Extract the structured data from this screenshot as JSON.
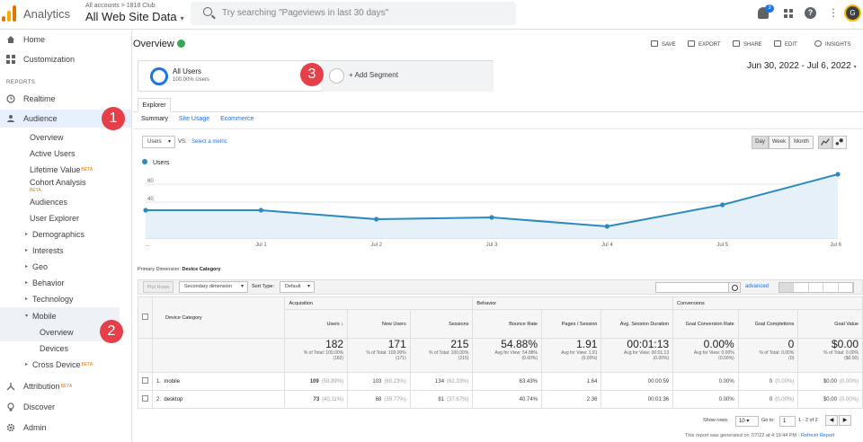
{
  "app": {
    "name": "Analytics",
    "breadcrumb": "All accounts > 1818 Club",
    "property": "All Web Site Data",
    "property_caret": "▾",
    "search_placeholder": "Try searching \"Pageviews in last 30 days\"",
    "notif_count": "3",
    "avatar_initial": "G"
  },
  "colors": {
    "accent": "#1a73e8",
    "series": "#2c8ac0",
    "badge": "#e5404a"
  },
  "sidebar": {
    "items": [
      {
        "label": "Home"
      },
      {
        "label": "Customization"
      },
      {
        "section": "REPORTS"
      },
      {
        "label": "Realtime"
      },
      {
        "label": "Audience"
      },
      {
        "label": "Overview"
      },
      {
        "label": "Active Users"
      },
      {
        "label": "Lifetime Value",
        "badge": "BETA"
      },
      {
        "label": "Cohort Analysis",
        "badge": "BETA"
      },
      {
        "label": "Audiences"
      },
      {
        "label": "User Explorer"
      },
      {
        "label": "Demographics"
      },
      {
        "label": "Interests"
      },
      {
        "label": "Geo"
      },
      {
        "label": "Behavior"
      },
      {
        "label": "Technology"
      },
      {
        "label": "Mobile"
      },
      {
        "label": "Overview"
      },
      {
        "label": "Devices"
      },
      {
        "label": "Cross Device",
        "badge": "BETA"
      },
      {
        "label": "Attribution",
        "badge": "BETA"
      },
      {
        "label": "Discover"
      },
      {
        "label": "Admin"
      }
    ],
    "badges": [
      "1",
      "2"
    ]
  },
  "report": {
    "title": "Overview",
    "toolbar": {
      "save": "SAVE",
      "export": "EXPORT",
      "share": "SHARE",
      "edit": "EDIT",
      "insights": "INSIGHTS"
    },
    "segment": {
      "name": "All Users",
      "pct": "100.00% Users",
      "add": "+ Add Segment",
      "badge": "3"
    },
    "date_range": "Jun 30, 2022 - Jul 6, 2022",
    "date_caret": "▾",
    "tab": "Explorer",
    "subtabs": [
      "Summary",
      "Site Usage",
      "Ecommerce"
    ],
    "metric": "Users",
    "vs": "VS:",
    "select_metric": "Select a metric",
    "periods": [
      "Day",
      "Week",
      "Month"
    ],
    "primary_dimension_label": "Primary Dimension:",
    "primary_dimension": "Device Category",
    "plot_rows": "Plot Rows",
    "secondary_dimension": "Secondary dimension",
    "sort_type_label": "Sort Type:",
    "sort_type": "Default",
    "advanced": "advanced"
  },
  "chart_data": {
    "type": "line",
    "series": [
      {
        "name": "Users",
        "values": [
          31,
          31,
          21,
          23,
          13,
          37,
          71
        ]
      }
    ],
    "categories": [
      "Jun 30",
      "Jul 1",
      "Jul 2",
      "Jul 3",
      "Jul 4",
      "Jul 5",
      "Jul 6"
    ],
    "x_tick_labels": [
      "...",
      "Jul 1",
      "Jul 2",
      "Jul 3",
      "Jul 4",
      "Jul 5",
      "Jul 6"
    ],
    "y_ticks": [
      20,
      40,
      60
    ],
    "ylim": [
      0,
      80
    ],
    "grid": true
  },
  "table": {
    "groups": [
      "Acquisition",
      "Behavior",
      "Conversions"
    ],
    "dimension": "Device Category",
    "columns": [
      "Users",
      "New Users",
      "Sessions",
      "Bounce Rate",
      "Pages / Session",
      "Avg. Session Duration",
      "Goal Conversion Rate",
      "Goal Completions",
      "Goal Value"
    ],
    "sort_arrow": "↓",
    "totals": [
      {
        "v": "182",
        "n1": "% of Total: 100.00%",
        "n2": "(182)"
      },
      {
        "v": "171",
        "n1": "% of Total: 100.00%",
        "n2": "(171)"
      },
      {
        "v": "215",
        "n1": "% of Total: 100.00%",
        "n2": "(215)"
      },
      {
        "v": "54.88%",
        "n1": "Avg for View: 54.88%",
        "n2": "(0.00%)"
      },
      {
        "v": "1.91",
        "n1": "Avg for View: 1.91",
        "n2": "(0.00%)"
      },
      {
        "v": "00:01:13",
        "n1": "Avg for View: 00:01:13",
        "n2": "(0.00%)"
      },
      {
        "v": "0.00%",
        "n1": "Avg for View: 0.00%",
        "n2": "(0.00%)"
      },
      {
        "v": "0",
        "n1": "% of Total: 0.00%",
        "n2": "(0)"
      },
      {
        "v": "$0.00",
        "n1": "% of Total: 0.00%",
        "n2": "($0.00)"
      }
    ],
    "rows": [
      {
        "idx": "1.",
        "name": "mobile",
        "users": "109",
        "users_pct": "(59.89%)",
        "new": "103",
        "new_pct": "(60.23%)",
        "sessions": "134",
        "sessions_pct": "(62.33%)",
        "bounce": "63.43%",
        "pps": "1.64",
        "dur": "00:00:59",
        "gcr": "0.00%",
        "gc": "0",
        "gc_pct": "(0.00%)",
        "gv": "$0.00",
        "gv_pct": "(0.00%)"
      },
      {
        "idx": "2.",
        "name": "desktop",
        "users": "73",
        "users_pct": "(40.11%)",
        "new": "68",
        "new_pct": "(39.77%)",
        "sessions": "81",
        "sessions_pct": "(37.67%)",
        "bounce": "40.74%",
        "pps": "2.36",
        "dur": "00:01:36",
        "gcr": "0.00%",
        "gc": "0",
        "gc_pct": "(0.00%)",
        "gv": "$0.00",
        "gv_pct": "(0.00%)"
      }
    ],
    "show_rows_label": "Show rows:",
    "show_rows": "10",
    "goto_label": "Go to:",
    "goto": "1",
    "range": "1 - 2 of 2",
    "generated": "This report was generated on 7/7/22 at 4:19:44 PM -",
    "refresh": "Refresh Report"
  }
}
